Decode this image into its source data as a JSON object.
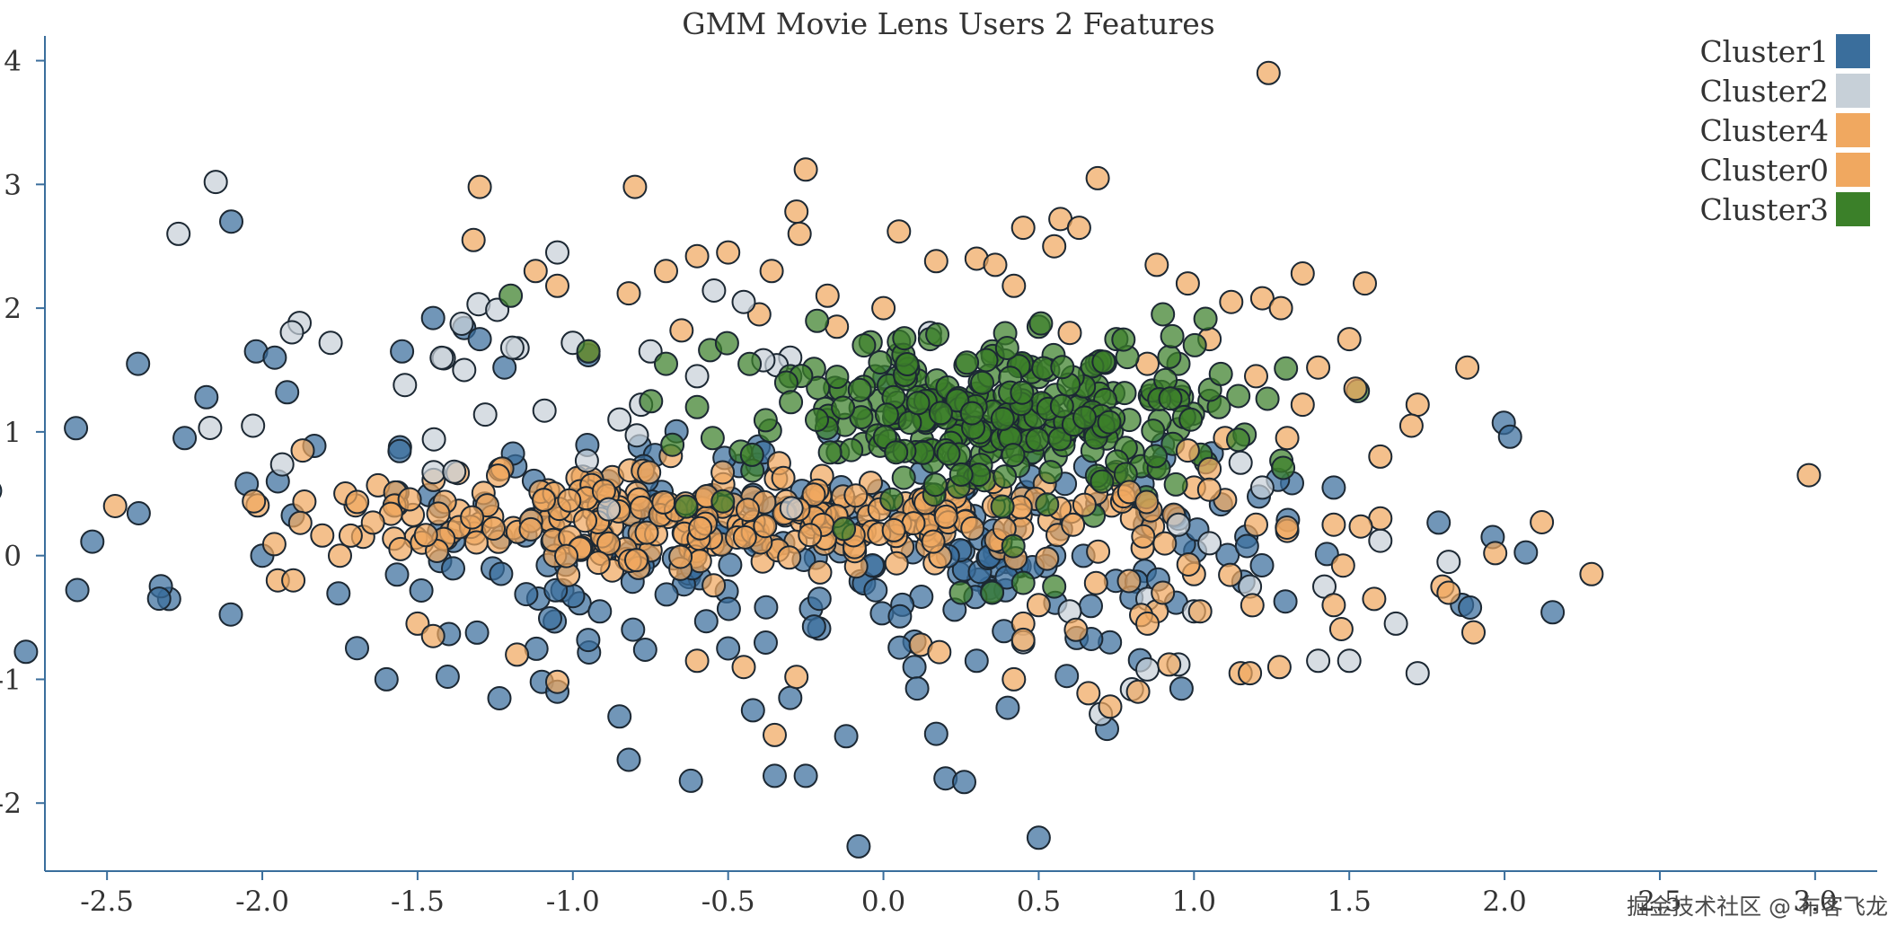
{
  "chart_data": {
    "type": "scatter",
    "title": "GMM Movie Lens Users 2 Features",
    "xlabel": "",
    "ylabel": "",
    "xlim": [
      -2.7,
      3.2
    ],
    "ylim": [
      -2.55,
      4.2
    ],
    "x_ticks": [
      -2.5,
      -2.0,
      -1.5,
      -1.0,
      -0.5,
      0.0,
      0.5,
      1.0,
      1.5,
      2.0,
      2.5,
      3.0
    ],
    "x_tick_labels": [
      "-2.5",
      "-2.0",
      "-1.5",
      "-1.0",
      "-0.5",
      "0.0",
      "0.5",
      "1.0",
      "1.5",
      "2.0",
      "2.5",
      "3.0"
    ],
    "y_ticks": [
      -2,
      -1,
      0,
      1,
      2,
      3,
      4
    ],
    "y_tick_labels": [
      "-2",
      "-1",
      "0",
      "1",
      "2",
      "3",
      "4"
    ],
    "grid": false,
    "legend_position": "top-right",
    "series": [
      {
        "name": "Cluster1",
        "color": "#3a6e9c",
        "points": [
          [
            -2.6,
            1.03
          ],
          [
            -2.4,
            1.55
          ],
          [
            -2.3,
            -0.35
          ],
          [
            -2.25,
            0.95
          ],
          [
            -2.18,
            1.28
          ],
          [
            -2.1,
            2.7
          ],
          [
            -2.05,
            0.58
          ],
          [
            -2.02,
            1.65
          ],
          [
            -1.96,
            1.6
          ],
          [
            -1.95,
            0.6
          ],
          [
            -1.92,
            1.32
          ],
          [
            -2.0,
            0.0
          ],
          [
            -1.6,
            -1.0
          ],
          [
            -1.1,
            -1.02
          ],
          [
            -1.05,
            -1.1
          ],
          [
            -0.85,
            -1.3
          ],
          [
            -0.82,
            -1.65
          ],
          [
            -0.62,
            -1.82
          ],
          [
            -0.42,
            -1.25
          ],
          [
            -0.35,
            -1.78
          ],
          [
            -0.25,
            -1.78
          ],
          [
            -0.12,
            -1.46
          ],
          [
            -0.08,
            -2.35
          ],
          [
            0.17,
            -1.44
          ],
          [
            0.2,
            -1.8
          ],
          [
            0.26,
            -1.83
          ],
          [
            0.4,
            -1.23
          ],
          [
            0.5,
            -2.28
          ],
          [
            0.72,
            -1.4
          ],
          [
            -1.45,
            1.92
          ],
          [
            -1.35,
            1.84
          ],
          [
            -1.3,
            1.75
          ],
          [
            -1.55,
            1.65
          ],
          [
            -1.22,
            1.52
          ],
          [
            -0.95,
            1.62
          ],
          [
            -0.3,
            -1.15
          ],
          [
            0.3,
            -0.85
          ],
          [
            0.1,
            -0.9
          ],
          [
            -0.5,
            -0.75
          ],
          [
            0.55,
            0.0
          ],
          [
            0.85,
            0.35
          ],
          [
            0.65,
            0.72
          ],
          [
            0.9,
            0.9
          ],
          [
            1.45,
            0.55
          ]
        ],
        "dense_cluster": {
          "cx": -0.2,
          "cy": 0.08,
          "sx": 0.95,
          "sy": 0.5,
          "n": 230,
          "seed": 11
        }
      },
      {
        "name": "Cluster2",
        "color": "#c7d0d8",
        "points": [
          [
            -2.27,
            2.6
          ],
          [
            -2.15,
            3.02
          ],
          [
            -1.88,
            1.88
          ],
          [
            -1.78,
            1.72
          ],
          [
            -2.03,
            1.05
          ],
          [
            -1.05,
            2.45
          ],
          [
            -0.75,
            1.65
          ],
          [
            -0.45,
            2.05
          ],
          [
            0.15,
            1.8
          ],
          [
            1.42,
            -0.25
          ],
          [
            1.4,
            -0.85
          ],
          [
            1.5,
            -0.85
          ],
          [
            1.6,
            0.12
          ],
          [
            1.65,
            -0.55
          ],
          [
            1.72,
            -0.95
          ],
          [
            1.82,
            -0.05
          ],
          [
            0.7,
            -1.28
          ],
          [
            0.8,
            -1.08
          ],
          [
            0.85,
            -0.92
          ],
          [
            0.95,
            -0.88
          ],
          [
            1.0,
            -0.45
          ],
          [
            0.95,
            0.25
          ],
          [
            1.18,
            -0.25
          ],
          [
            1.22,
            0.55
          ],
          [
            0.6,
            -0.45
          ],
          [
            0.45,
            -0.7
          ],
          [
            -1.35,
            1.5
          ],
          [
            -1.0,
            1.72
          ],
          [
            -0.85,
            1.1
          ],
          [
            -0.6,
            1.45
          ],
          [
            -0.3,
            1.6
          ],
          [
            1.15,
            0.75
          ],
          [
            1.05,
            0.1
          ],
          [
            0.85,
            -0.35
          ]
        ],
        "dense_cluster": {
          "cx": -0.95,
          "cy": 1.15,
          "sx": 0.45,
          "sy": 0.45,
          "n": 25,
          "seed": 23
        }
      },
      {
        "name": "Cluster4",
        "color": "#f0a860",
        "points": [
          [
            -1.3,
            2.98
          ],
          [
            -1.32,
            2.55
          ],
          [
            -0.8,
            2.98
          ],
          [
            -0.25,
            3.12
          ],
          [
            -0.28,
            2.78
          ],
          [
            -0.27,
            2.6
          ],
          [
            -0.6,
            2.42
          ],
          [
            -0.5,
            2.45
          ],
          [
            0.05,
            2.62
          ],
          [
            0.45,
            2.65
          ],
          [
            0.57,
            2.72
          ],
          [
            0.63,
            2.65
          ],
          [
            0.55,
            2.5
          ],
          [
            0.69,
            3.05
          ],
          [
            1.24,
            3.9
          ],
          [
            1.35,
            2.28
          ],
          [
            1.55,
            2.2
          ],
          [
            0.88,
            2.35
          ],
          [
            0.98,
            2.2
          ],
          [
            1.12,
            2.05
          ],
          [
            1.22,
            2.08
          ],
          [
            1.28,
            2.0
          ],
          [
            1.05,
            1.75
          ],
          [
            -1.12,
            2.3
          ],
          [
            -1.05,
            2.18
          ],
          [
            -0.82,
            2.12
          ],
          [
            -0.7,
            2.3
          ],
          [
            -0.36,
            2.3
          ],
          [
            -0.18,
            2.1
          ],
          [
            0.17,
            2.38
          ],
          [
            0.3,
            2.4
          ],
          [
            0.36,
            2.35
          ],
          [
            0.42,
            2.18
          ],
          [
            -1.87,
            0.85
          ],
          [
            -1.95,
            -0.2
          ],
          [
            -1.9,
            -0.2
          ],
          [
            -1.75,
            0.0
          ],
          [
            -1.5,
            -0.55
          ],
          [
            -1.45,
            -0.65
          ],
          [
            -1.18,
            -0.8
          ],
          [
            -1.05,
            -1.02
          ],
          [
            -0.6,
            -0.85
          ],
          [
            -0.45,
            -0.9
          ],
          [
            -0.35,
            -1.45
          ],
          [
            -0.28,
            -0.98
          ],
          [
            0.12,
            -0.72
          ],
          [
            0.18,
            -0.78
          ],
          [
            0.42,
            -1.0
          ],
          [
            0.45,
            -0.55
          ],
          [
            0.5,
            -0.4
          ],
          [
            -0.95,
            1.65
          ],
          [
            -0.65,
            1.82
          ],
          [
            -0.4,
            1.95
          ],
          [
            -0.15,
            1.85
          ],
          [
            0.0,
            2.0
          ],
          [
            0.6,
            1.8
          ],
          [
            0.85,
            1.55
          ],
          [
            1.1,
            0.95
          ],
          [
            0.8,
            0.3
          ],
          [
            1.0,
            0.55
          ]
        ],
        "dense_cluster": {
          "cx": -0.55,
          "cy": 0.32,
          "sx": 0.62,
          "sy": 0.2,
          "n": 300,
          "seed": 37
        }
      },
      {
        "name": "Cluster0",
        "color": "#f0a860",
        "points": [
          [
            2.98,
            0.65
          ],
          [
            2.28,
            -0.15
          ],
          [
            2.12,
            0.27
          ],
          [
            1.97,
            0.02
          ],
          [
            1.9,
            -0.62
          ],
          [
            1.88,
            1.52
          ],
          [
            1.72,
            1.22
          ],
          [
            1.7,
            1.05
          ],
          [
            1.6,
            0.8
          ],
          [
            1.58,
            -0.35
          ],
          [
            1.6,
            0.3
          ],
          [
            1.52,
            1.35
          ],
          [
            1.5,
            1.75
          ],
          [
            1.48,
            -0.08
          ],
          [
            1.45,
            0.25
          ],
          [
            1.4,
            1.52
          ],
          [
            1.35,
            1.22
          ],
          [
            1.3,
            0.2
          ],
          [
            1.2,
            1.45
          ],
          [
            1.2,
            0.25
          ],
          [
            1.15,
            -0.95
          ],
          [
            1.18,
            -0.95
          ],
          [
            1.05,
            0.7
          ],
          [
            1.02,
            -0.45
          ],
          [
            1.0,
            -0.15
          ],
          [
            0.98,
            0.85
          ],
          [
            0.92,
            -0.88
          ],
          [
            0.88,
            -0.45
          ],
          [
            0.83,
            -0.48
          ],
          [
            0.85,
            -0.55
          ],
          [
            0.82,
            -1.1
          ],
          [
            0.73,
            -1.22
          ],
          [
            0.62,
            -0.6
          ],
          [
            0.45,
            -0.68
          ],
          [
            1.3,
            0.95
          ],
          [
            1.45,
            -0.4
          ],
          [
            1.8,
            -0.25
          ],
          [
            1.82,
            -0.3
          ],
          [
            0.9,
            -0.3
          ],
          [
            1.1,
            0.45
          ]
        ],
        "dense_cluster": {
          "cx": 1.05,
          "cy": 0.2,
          "sx": 0.3,
          "sy": 0.55,
          "n": 16,
          "seed": 53
        }
      },
      {
        "name": "Cluster3",
        "color": "#3b8029",
        "points": [
          [
            -1.2,
            2.1
          ],
          [
            -0.95,
            1.65
          ],
          [
            -0.7,
            1.55
          ],
          [
            -0.6,
            1.2
          ],
          [
            -0.55,
            0.95
          ],
          [
            0.95,
            1.55
          ],
          [
            1.05,
            1.25
          ],
          [
            1.08,
            1.2
          ],
          [
            0.25,
            -0.3
          ],
          [
            0.35,
            -0.3
          ],
          [
            0.45,
            -0.22
          ],
          [
            0.55,
            -0.25
          ],
          [
            0.15,
            1.75
          ],
          [
            0.75,
            1.75
          ],
          [
            0.9,
            1.95
          ],
          [
            0.5,
            1.85
          ],
          [
            -0.3,
            1.45
          ],
          [
            0.35,
            1.65
          ]
        ],
        "dense_cluster": {
          "cx": 0.38,
          "cy": 1.12,
          "sx": 0.42,
          "sy": 0.33,
          "n": 300,
          "seed": 71
        }
      }
    ],
    "watermark": "掘金技术社区 @ 布客飞龙"
  }
}
